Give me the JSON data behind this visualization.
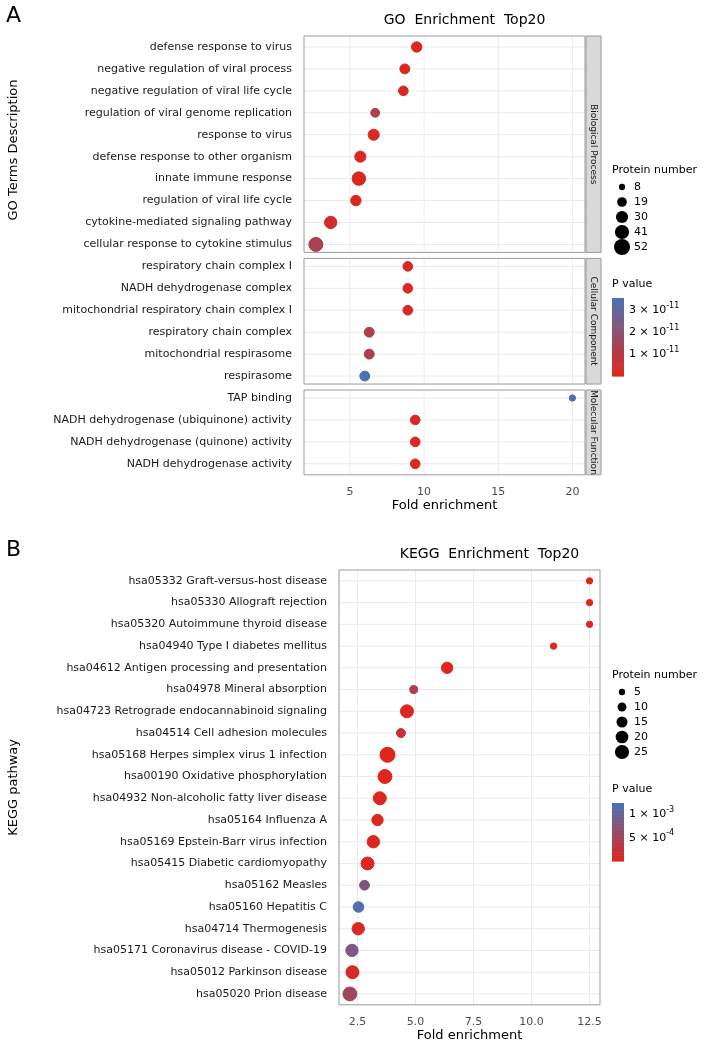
{
  "chart_data": [
    {
      "type": "bubble",
      "orientation": "horizontal",
      "title": "GO  Enrichment  Top20",
      "xlabel": "Fold enrichment",
      "ylabel": "GO Terms Description",
      "annotations": [
        "A",
        "Biological Process",
        "Cellular Component",
        "Molecular Function"
      ],
      "categories": [
        "defense response to virus",
        "negative regulation of viral process",
        "negative regulation of viral life cycle",
        "regulation of viral genome replication",
        "response to virus",
        "defense response to other organism",
        "innate immune response",
        "regulation of viral life cycle",
        "cytokine-mediated signaling pathway",
        "cellular response to cytokine stimulus",
        "respiratory chain complex I",
        "NADH dehydrogenase complex",
        "mitochondrial respiratory chain complex I",
        "respiratory chain complex",
        "mitochondrial respirasome",
        "respirasome",
        "TAP binding",
        "NADH dehydrogenase (ubiquinone) activity",
        "NADH dehydrogenase (quinone) activity",
        "NADH dehydrogenase activity"
      ],
      "series": [
        {
          "values": [
            9.5,
            8.7,
            8.6,
            6.7,
            6.6,
            5.7,
            5.6,
            5.4,
            3.7,
            2.7,
            null,
            null,
            null,
            null,
            null,
            null,
            null,
            null,
            null,
            null
          ],
          "sizes": [
            22,
            20,
            19,
            16,
            25,
            25,
            37,
            22,
            31,
            40,
            null,
            null,
            null,
            null,
            null,
            null,
            null,
            null,
            null,
            null
          ],
          "cvalues": [
            1e-12,
            1e-12,
            1e-12,
            1.3e-11,
            2e-12,
            1e-12,
            1e-12,
            1e-12,
            3e-12,
            1.3e-11,
            null,
            null,
            null,
            null,
            null,
            null,
            null,
            null,
            null,
            null
          ],
          "colors": [
            "#dc271f",
            "#dc271f",
            "#dc271f",
            "#a94153",
            "#d82924",
            "#dc271f",
            "#dc271f",
            "#dc271f",
            "#d32c28",
            "#a94153",
            null,
            null,
            null,
            null,
            null,
            null,
            null,
            null,
            null,
            null
          ]
        },
        {
          "values": [
            null,
            null,
            null,
            null,
            null,
            null,
            null,
            null,
            null,
            null,
            8.9,
            8.9,
            8.9,
            6.3,
            6.3,
            6.0,
            null,
            null,
            null,
            null
          ],
          "sizes": [
            null,
            null,
            null,
            null,
            null,
            null,
            null,
            null,
            null,
            null,
            19,
            19,
            19,
            20,
            20,
            20,
            null,
            null,
            null,
            null
          ],
          "cvalues": [
            null,
            null,
            null,
            null,
            null,
            null,
            null,
            null,
            null,
            null,
            2e-12,
            2e-12,
            2e-12,
            1.2e-11,
            1.2e-11,
            3.5e-11,
            null,
            null,
            null,
            null
          ],
          "colors": [
            null,
            null,
            null,
            null,
            null,
            null,
            null,
            null,
            null,
            null,
            "#d82924",
            "#d82924",
            "#d82924",
            "#ae3f4f",
            "#ae3f4f",
            "#4d71b3",
            null,
            null,
            null,
            null
          ]
        },
        {
          "values": [
            null,
            null,
            null,
            null,
            null,
            null,
            null,
            null,
            null,
            null,
            null,
            null,
            null,
            null,
            null,
            null,
            20.0,
            9.4,
            9.4,
            9.4
          ],
          "sizes": [
            null,
            null,
            null,
            null,
            null,
            null,
            null,
            null,
            null,
            null,
            null,
            null,
            null,
            null,
            null,
            null,
            8,
            19,
            19,
            19
          ],
          "cvalues": [
            null,
            null,
            null,
            null,
            null,
            null,
            null,
            null,
            null,
            null,
            null,
            null,
            null,
            null,
            null,
            null,
            3.3e-11,
            2e-12,
            2e-12,
            2e-12
          ],
          "colors": [
            null,
            null,
            null,
            null,
            null,
            null,
            null,
            null,
            null,
            null,
            null,
            null,
            null,
            null,
            null,
            null,
            "#556daa",
            "#d82924",
            "#d82924",
            "#d82924"
          ]
        }
      ],
      "xlim": [
        1.9,
        20.85
      ],
      "xticks": [
        5,
        10,
        15,
        20
      ],
      "grid": true,
      "legend_title": "Protein number",
      "size_legend": [
        8,
        19,
        30,
        41,
        52
      ],
      "clabel": "P value",
      "clim": [
        0,
        3.55e-11
      ],
      "cticks": [
        {
          "value": 3e-11,
          "label": "3 × 10$^{-11}$"
        },
        {
          "value": 2e-11,
          "label": "2 × 10$^{-11}$"
        },
        {
          "value": 1e-11,
          "label": "1 × 10$^{-11}$"
        }
      ]
    },
    {
      "type": "bubble",
      "orientation": "horizontal",
      "title": "KEGG  Enrichment  Top20",
      "xlabel": "Fold enrichment",
      "ylabel": "KEGG pathway",
      "annotations": [
        "B"
      ],
      "categories": [
        "hsa05332 Graft-versus-host disease",
        "hsa05330 Allograft rejection",
        "hsa05320 Autoimmune thyroid disease",
        "hsa04940 Type I diabetes mellitus",
        "hsa04612 Antigen processing and presentation",
        "hsa04978 Mineral absorption",
        "hsa04723 Retrograde endocannabinoid signaling",
        "hsa04514 Cell adhesion molecules",
        "hsa05168 Herpes simplex virus 1 infection",
        "hsa00190 Oxidative phosphorylation",
        "hsa04932 Non-alcoholic fatty liver disease",
        "hsa05164 Influenza A",
        "hsa05169 Epstein-Barr virus infection",
        "hsa05415 Diabetic cardiomyopathy",
        "hsa05162 Measles",
        "hsa05160 Hepatitis C",
        "hsa04714 Thermogenesis",
        "hsa05171 Coronavirus disease - COVID-19",
        "hsa05012 Parkinson disease",
        "hsa05020 Prion disease"
      ],
      "series": [
        {
          "values": [
            12.5,
            12.5,
            12.5,
            10.95,
            6.36,
            4.92,
            4.63,
            4.37,
            3.79,
            3.68,
            3.46,
            3.36,
            3.18,
            2.93,
            2.8,
            2.54,
            2.53,
            2.26,
            2.28,
            2.17
          ],
          "sizes": [
            5,
            5,
            5,
            5,
            16,
            8,
            21,
            10,
            28,
            24,
            21,
            16,
            19,
            21,
            12,
            14,
            19,
            19,
            21,
            24
          ],
          "cvalues": [
            1e-05,
            1e-05,
            1e-05,
            1e-05,
            2e-05,
            0.0004,
            5e-05,
            0.0002,
            1e-05,
            1e-05,
            3e-05,
            3e-05,
            3e-05,
            5e-05,
            0.0008,
            0.0012,
            6e-05,
            0.00085,
            0.0001,
            0.00055
          ]
        }
      ],
      "xlim": [
        1.7,
        12.95
      ],
      "xticks": [
        2.5,
        {
          "value": 5,
          "label": "5.0"
        },
        {
          "value": 7.5,
          "label": "7.5"
        },
        {
          "value": 10,
          "label": "10.0"
        },
        12.5
      ],
      "grid": true,
      "legend_title": "Protein number",
      "size_legend": [
        5,
        10,
        15,
        20,
        25
      ],
      "clabel": "P value",
      "clim": [
        0,
        0.00125
      ],
      "cticks": [
        {
          "value": 0.001,
          "label": "1 × 10$^{-3}$"
        },
        {
          "value": 0.0005,
          "label": "5 × 10$^{-4}$"
        }
      ]
    }
  ]
}
